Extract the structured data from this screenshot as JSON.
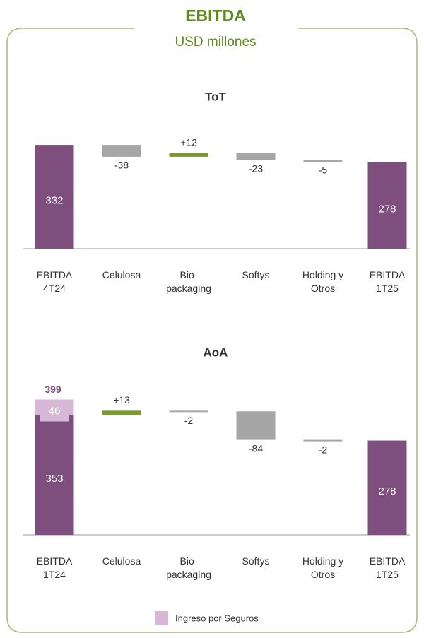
{
  "title": "EBITDA",
  "subtitle": "USD millones",
  "chart_data": [
    {
      "type": "waterfall",
      "title": "ToT",
      "categories": [
        "EBITDA 4T24",
        "Celulosa",
        "Bio-packaging",
        "Softys",
        "Holding y Otros",
        "EBITDA 1T25"
      ],
      "values": [
        332,
        -38,
        12,
        -23,
        -5,
        278
      ],
      "value_labels": [
        "332",
        "-38",
        "+12",
        "-23",
        "-5",
        "278"
      ],
      "total_color": "#7d4e7e",
      "increase_color": "#7a9a2a",
      "decrease_color": "#a6a6a6",
      "ylim": [
        0,
        400
      ]
    },
    {
      "type": "waterfall",
      "title": "AoA",
      "categories": [
        "EBITDA 1T24",
        "Celulosa",
        "Bio-packaging",
        "Softys",
        "Holding y Otros",
        "EBITDA 1T25"
      ],
      "values": [
        353,
        13,
        -2,
        -84,
        -2,
        278
      ],
      "value_labels": [
        "353",
        "+13",
        "-2",
        "-84",
        "-2",
        "278"
      ],
      "total_color": "#7d4e7e",
      "increase_color": "#7a9a2a",
      "decrease_color": "#a6a6a6",
      "series": [
        {
          "name": "Ingreso por Seguros",
          "color": "#d7b8d6",
          "values": [
            46,
            null,
            null,
            null,
            null,
            null
          ]
        }
      ],
      "stack_totals": [
        399,
        null,
        null,
        null,
        null,
        null
      ],
      "ylim": [
        0,
        400
      ]
    }
  ]
}
